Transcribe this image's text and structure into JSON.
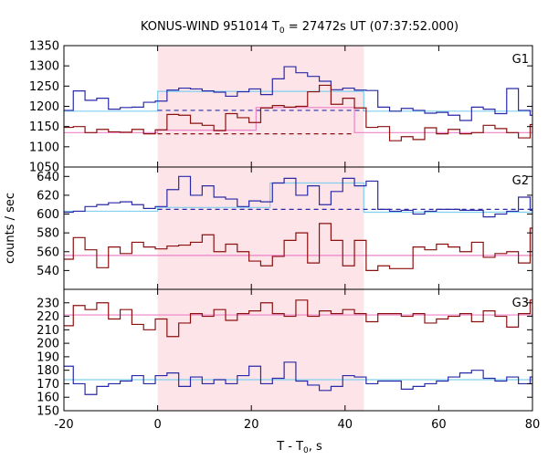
{
  "chart_data": {
    "type": "line",
    "title_prefix": "KONUS-WIND 951014 T",
    "title_sub": "0",
    "title_suffix": " = 27472s UT (07:37:52.000)",
    "xlabel_prefix": "T - T",
    "xlabel_sub": "0",
    "xlabel_suffix": ", s",
    "ylabel": "counts / sec",
    "xlim": [
      -20,
      80
    ],
    "xticks": [
      "-20",
      "0",
      "20",
      "40",
      "60",
      "80"
    ],
    "shaded_interval": [
      0,
      44
    ],
    "grid": false,
    "colors": {
      "blue_series": "#2a2aa8",
      "red_series": "#8b1010",
      "blue_fit": "#80d0ee",
      "red_fit": "#ee82c8",
      "shade": "#fde4e8"
    },
    "bin_edges": [
      -20.5,
      -18,
      -15.5,
      -13,
      -10.5,
      -8,
      -5.5,
      -3,
      -0.5,
      2,
      4.5,
      7,
      9.5,
      12,
      14.5,
      17,
      19.5,
      22,
      24.5,
      27,
      29.5,
      32,
      34.5,
      37,
      39.5,
      42,
      44.5,
      47,
      49.5,
      52,
      54.5,
      57,
      59.5,
      62,
      64.5,
      67,
      69.5,
      72,
      74.5,
      77,
      79.5,
      82
    ],
    "panels": [
      {
        "label": "G1",
        "ylim": [
          1050,
          1350
        ],
        "yticks": [
          "1050",
          "1100",
          "1150",
          "1200",
          "1250",
          "1300",
          "1350"
        ],
        "series": [
          {
            "color": "blue",
            "values": [
              1190,
              1238,
              1215,
              1220,
              1193,
              1197,
              1198,
              1210,
              1213,
              1240,
              1245,
              1243,
              1238,
              1235,
              1225,
              1236,
              1243,
              1229,
              1268,
              1298,
              1283,
              1274,
              1262,
              1241,
              1245,
              1240,
              1239,
              1198,
              1188,
              1195,
              1190,
              1183,
              1185,
              1178,
              1165,
              1198,
              1193,
              1182,
              1244,
              1190,
              1178,
              1214
            ]
          },
          {
            "color": "red",
            "values": [
              1148,
              1150,
              1135,
              1143,
              1137,
              1136,
              1143,
              1132,
              1142,
              1180,
              1178,
              1158,
              1153,
              1140,
              1182,
              1172,
              1160,
              1196,
              1202,
              1198,
              1200,
              1236,
              1252,
              1205,
              1220,
              1196,
              1148,
              1150,
              1115,
              1125,
              1118,
              1147,
              1132,
              1143,
              1132,
              1135,
              1153,
              1145,
              1135,
              1122,
              1155,
              1132
            ]
          }
        ],
        "fits": [
          {
            "color": "blue",
            "segments": [
              [
                -20,
                0,
                1188
              ],
              [
                0,
                44,
                1237
              ],
              [
                44,
                80,
                1188
              ]
            ],
            "dashed": [
              0,
              44,
              1190
            ]
          },
          {
            "color": "red",
            "segments": [
              [
                -20,
                0,
                1135
              ],
              [
                0,
                21,
                1141
              ],
              [
                21,
                42,
                1197
              ],
              [
                42,
                80,
                1135
              ]
            ],
            "dashed": [
              0,
              42,
              1132
            ]
          }
        ]
      },
      {
        "label": "G2",
        "ylim": [
          520,
          650
        ],
        "yticks": [
          "540",
          "560",
          "580",
          "600",
          "620",
          "640"
        ],
        "series": [
          {
            "color": "blue",
            "values": [
              602,
              603,
              608,
              610,
              612,
              613,
              610,
              606,
              608,
              626,
              640,
              620,
              630,
              618,
              616,
              608,
              614,
              613,
              633,
              638,
              620,
              630,
              610,
              624,
              638,
              630,
              635,
              605,
              603,
              604,
              600,
              603,
              605,
              605,
              604,
              604,
              597,
              600,
              603,
              618,
              604,
              606
            ]
          },
          {
            "color": "red",
            "values": [
              552,
              575,
              562,
              543,
              565,
              558,
              570,
              565,
              563,
              566,
              567,
              570,
              578,
              560,
              568,
              560,
              550,
              545,
              555,
              572,
              580,
              548,
              590,
              572,
              545,
              572,
              540,
              545,
              542,
              542,
              565,
              562,
              568,
              565,
              560,
              570,
              554,
              558,
              560,
              548,
              585,
              560
            ]
          }
        ],
        "fits": [
          {
            "color": "blue",
            "segments": [
              [
                -20,
                0,
                603
              ],
              [
                0,
                24,
                607
              ],
              [
                24,
                44,
                633
              ],
              [
                44,
                80,
                602
              ]
            ],
            "dashed": [
              0,
              80,
              605
            ]
          },
          {
            "color": "red",
            "segments": [
              [
                -20,
                80,
                556
              ]
            ],
            "dashed": null
          }
        ]
      },
      {
        "label": "G3",
        "ylim": [
          150,
          240
        ],
        "yticks": [
          "150",
          "160",
          "170",
          "180",
          "190",
          "200",
          "210",
          "220",
          "230"
        ],
        "series": [
          {
            "color": "blue",
            "values": [
              183,
              170,
              162,
              168,
              170,
              172,
              176,
              170,
              176,
              178,
              168,
              175,
              170,
              173,
              170,
              176,
              183,
              170,
              174,
              186,
              172,
              169,
              165,
              168,
              176,
              175,
              170,
              172,
              172,
              166,
              168,
              170,
              172,
              175,
              178,
              180,
              174,
              172,
              175,
              170,
              175,
              160
            ]
          },
          {
            "color": "red",
            "values": [
              213,
              228,
              225,
              230,
              218,
              225,
              214,
              210,
              218,
              205,
              215,
              222,
              220,
              225,
              217,
              222,
              224,
              230,
              222,
              220,
              232,
              220,
              224,
              222,
              225,
              222,
              216,
              222,
              222,
              220,
              222,
              215,
              218,
              220,
              222,
              216,
              224,
              220,
              212,
              222,
              232,
              220
            ]
          }
        ],
        "fits": [
          {
            "color": "blue",
            "segments": [
              [
                -20,
                80,
                173
              ]
            ],
            "dashed": null
          },
          {
            "color": "red",
            "segments": [
              [
                -20,
                80,
                221
              ]
            ],
            "dashed": null
          }
        ]
      }
    ]
  }
}
